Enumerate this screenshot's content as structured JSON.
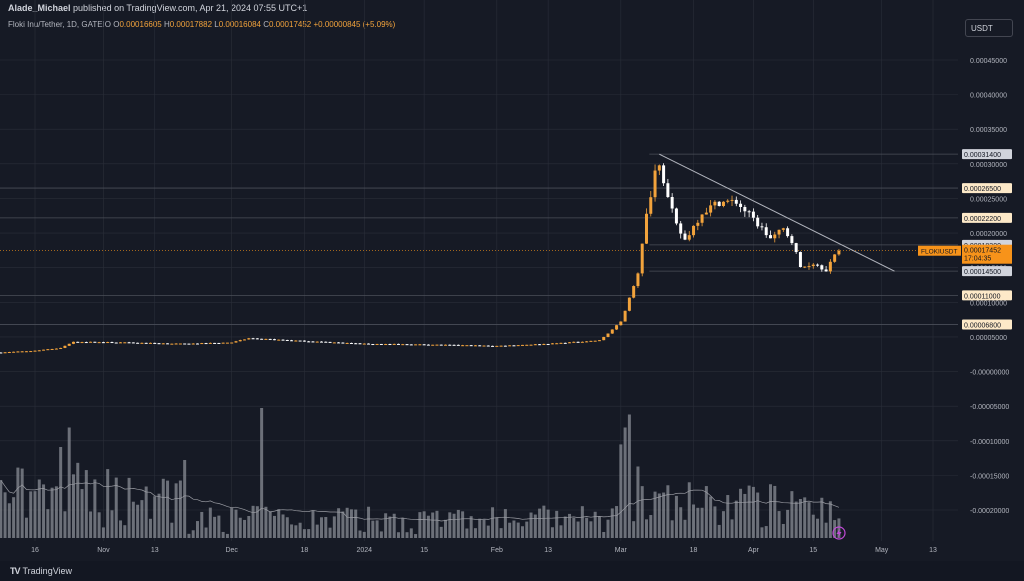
{
  "header": {
    "author": "Alade_Michael",
    "published": "published on TradingView.com, Apr 21, 2024 07:55 UTC+1"
  },
  "symbol_info": {
    "name": "Floki Inu/Tether, 1D, GATEIO",
    "open_label": "O",
    "open": "0.00016605",
    "high_label": "H",
    "high": "0.00017882",
    "low_label": "L",
    "low": "0.00016084",
    "close_label": "C",
    "close": "0.00017452",
    "change": "+0.00000845 (+5.09%)"
  },
  "currency_button": "USDT",
  "footer": {
    "brand_logo": "TV",
    "brand_name": "TradingView"
  },
  "colors": {
    "background": "#161a25",
    "up": "#f2a33c",
    "down": "#ffffff",
    "grid": "#2a2e39",
    "level_line": "#4a4e58",
    "volume": "#8a8d95",
    "accent": "#f7931a"
  },
  "icons": {
    "bolt": "lightning-bolt-icon"
  },
  "chart_data": {
    "type": "candlestick",
    "y_axis": {
      "ticks": [
        "0.00045000",
        "0.00040000",
        "0.00035000",
        "0.00030000",
        "0.00025000",
        "0.00020000",
        "0.00015000",
        "0.00010000",
        "0.00005000",
        "-0.00000000",
        "-0.00005000",
        "-0.00010000",
        "-0.00015000",
        "-0.00020000"
      ],
      "tick_values": [
        0.00045,
        0.0004,
        0.00035,
        0.0003,
        0.00025,
        0.0002,
        0.00015,
        0.0001,
        5e-05,
        0,
        -5e-05,
        -0.0001,
        -0.00015,
        -0.0002
      ]
    },
    "x_axis": {
      "ticks": [
        "16",
        "Nov",
        "13",
        "Dec",
        "18",
        "2024",
        "15",
        "Feb",
        "13",
        "Mar",
        "18",
        "Apr",
        "15",
        "May",
        "13"
      ],
      "tick_dates": [
        "2023-10-16",
        "2023-11-01",
        "2023-11-13",
        "2023-12-01",
        "2023-12-18",
        "2024-01-01",
        "2024-01-15",
        "2024-02-01",
        "2024-02-13",
        "2024-03-01",
        "2024-03-18",
        "2024-04-01",
        "2024-04-15",
        "2024-05-01",
        "2024-05-13"
      ]
    },
    "levels": [
      {
        "label": "0.00031400",
        "value": 0.000314,
        "style": "gray"
      },
      {
        "label": "0.00026500",
        "value": 0.000265,
        "style": "highlight"
      },
      {
        "label": "0.00022200",
        "value": 0.000222,
        "style": "highlight"
      },
      {
        "label": "0.00018300",
        "value": 0.000183,
        "style": "gray"
      },
      {
        "label": "0.00014500",
        "value": 0.000145,
        "style": "gray"
      },
      {
        "label": "0.00011000",
        "value": 0.00011,
        "style": "highlight"
      },
      {
        "label": "0.00006800",
        "value": 6.8e-05,
        "style": "highlight"
      }
    ],
    "last_price": {
      "symbol": "FLOKIUSDT",
      "value": "0.00017452",
      "countdown": "17:04:35",
      "price": 0.00017452
    },
    "trendline": [
      {
        "date": "2024-03-10",
        "price": 0.000314
      },
      {
        "date": "2024-05-04",
        "price": 0.000145
      }
    ],
    "price_path": [
      [
        "2023-10-08",
        2.75e-05
      ],
      [
        "2023-10-16",
        3e-05
      ],
      [
        "2023-10-22",
        3.4e-05
      ],
      [
        "2023-10-25",
        4.3e-05
      ],
      [
        "2023-11-05",
        4.2e-05
      ],
      [
        "2023-11-20",
        4e-05
      ],
      [
        "2023-12-01",
        4.2e-05
      ],
      [
        "2023-12-05",
        4.8e-05
      ],
      [
        "2023-12-18",
        4.4e-05
      ],
      [
        "2024-01-01",
        4e-05
      ],
      [
        "2024-01-15",
        3.9e-05
      ],
      [
        "2024-02-01",
        3.7e-05
      ],
      [
        "2024-02-13",
        4e-05
      ],
      [
        "2024-02-25",
        4.5e-05
      ],
      [
        "2024-02-27",
        5.5e-05
      ],
      [
        "2024-03-01",
        7.2e-05
      ],
      [
        "2024-03-03",
        0.000105
      ],
      [
        "2024-03-05",
        0.00014
      ],
      [
        "2024-03-07",
        0.000225
      ],
      [
        "2024-03-09",
        0.00029
      ],
      [
        "2024-03-10",
        0.000305
      ],
      [
        "2024-03-12",
        0.00025
      ],
      [
        "2024-03-14",
        0.00021
      ],
      [
        "2024-03-16",
        0.00019
      ],
      [
        "2024-03-20",
        0.00023
      ],
      [
        "2024-03-24",
        0.000245
      ],
      [
        "2024-03-28",
        0.000245
      ],
      [
        "2024-04-01",
        0.00022
      ],
      [
        "2024-04-05",
        0.000192
      ],
      [
        "2024-04-08",
        0.000205
      ],
      [
        "2024-04-10",
        0.00019
      ],
      [
        "2024-04-12",
        0.00015
      ],
      [
        "2024-04-15",
        0.000157
      ],
      [
        "2024-04-18",
        0.000148
      ],
      [
        "2024-04-21",
        0.00017452
      ]
    ],
    "volume_spikes": [
      [
        "2023-10-17",
        0.45
      ],
      [
        "2023-10-22",
        0.7
      ],
      [
        "2023-10-24",
        0.85
      ],
      [
        "2023-11-20",
        0.6
      ],
      [
        "2023-12-08",
        1.0
      ],
      [
        "2024-03-01",
        0.72
      ],
      [
        "2024-03-02",
        0.85
      ],
      [
        "2024-03-03",
        0.95
      ],
      [
        "2024-03-05",
        0.55
      ],
      [
        "2024-04-12",
        0.3
      ]
    ]
  }
}
